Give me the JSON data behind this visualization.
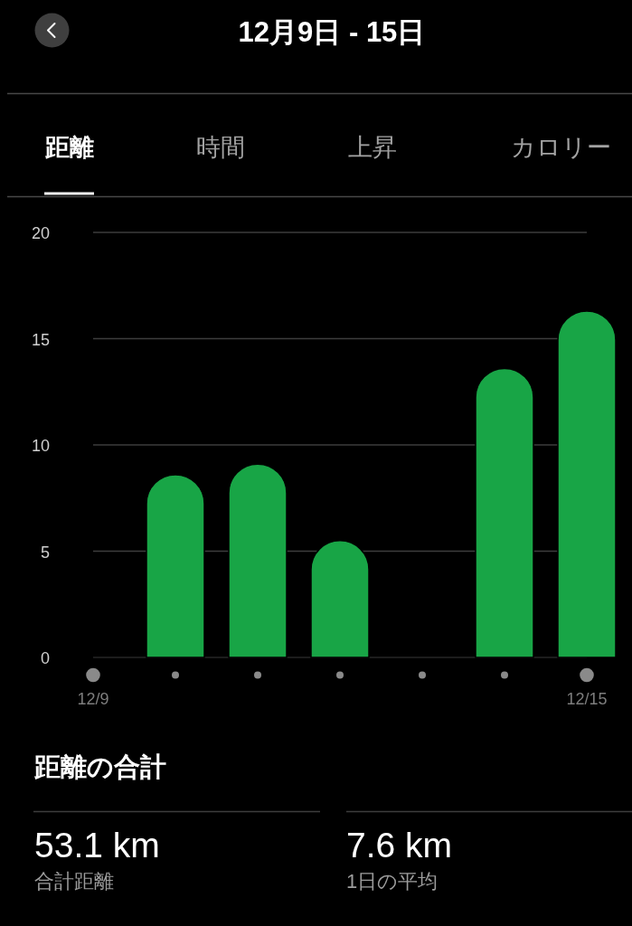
{
  "chart_data": {
    "type": "bar",
    "title": "12月9日 - 15日",
    "categories": [
      "12/9",
      null,
      null,
      null,
      null,
      null,
      "12/15"
    ],
    "values": [
      0,
      8.6,
      9.1,
      5.5,
      0,
      13.6,
      16.3
    ],
    "color": "#18a546",
    "ylim": [
      0,
      20
    ],
    "yticks": [
      0,
      5,
      10,
      15,
      20
    ],
    "grid": "y",
    "annotations": [
      "距離",
      "時間",
      "上昇",
      "カロリー",
      "距離の合計",
      "53.1 km",
      "合計距離",
      "7.6 km",
      "1日の平均"
    ]
  }
}
